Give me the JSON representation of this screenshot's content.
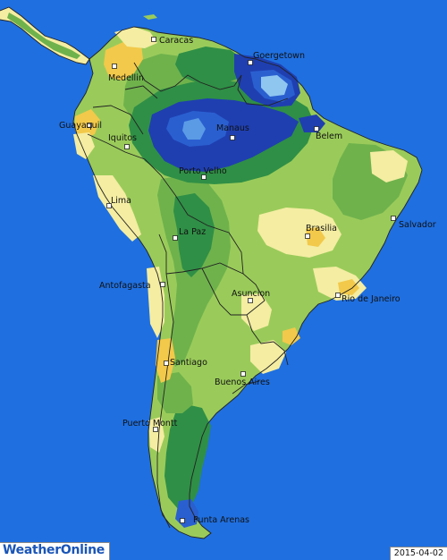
{
  "map": {
    "colors": {
      "ocean": "#1f6fe0",
      "dry_yellow": "#f2c94a",
      "light_cream": "#f4eda2",
      "light_green": "#9acb5a",
      "mid_green": "#6fb24c",
      "dark_green": "#2f8f46",
      "wet_dark_blue": "#1f3fb0",
      "wet_mid_blue": "#2a5fd0",
      "wet_light_blue": "#8fc6f0",
      "border": "#222222"
    },
    "cities": [
      {
        "id": "caracas",
        "name": "Caracas"
      },
      {
        "id": "goergetown",
        "name": "Goergetown"
      },
      {
        "id": "medellin",
        "name": "Medellin"
      },
      {
        "id": "guayaquil",
        "name": "Guayaquil"
      },
      {
        "id": "iquitos",
        "name": "Iquitos"
      },
      {
        "id": "manaus",
        "name": "Manaus"
      },
      {
        "id": "belem",
        "name": "Belem"
      },
      {
        "id": "porto-velho",
        "name": "Porto Velho"
      },
      {
        "id": "lima",
        "name": "Lima"
      },
      {
        "id": "la-paz",
        "name": "La Paz"
      },
      {
        "id": "brasilia",
        "name": "Brasilia"
      },
      {
        "id": "salvador",
        "name": "Salvador"
      },
      {
        "id": "antofagasta",
        "name": "Antofagasta"
      },
      {
        "id": "asuncion",
        "name": "Asuncion"
      },
      {
        "id": "rio-de-janeiro",
        "name": "Rio de Janeiro"
      },
      {
        "id": "santiago",
        "name": "Santiago"
      },
      {
        "id": "buenos-aires",
        "name": "Buenos Aires"
      },
      {
        "id": "puerto-montt",
        "name": "Puerto Montt"
      },
      {
        "id": "punta-arenas",
        "name": "Punta Arenas"
      }
    ]
  },
  "branding": {
    "logo": "WeatherOnline"
  },
  "footer": {
    "date": "2015-04-02"
  }
}
